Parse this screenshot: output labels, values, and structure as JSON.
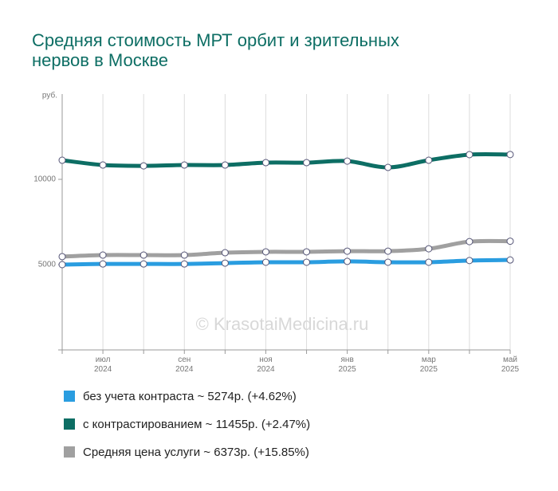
{
  "chart_data": {
    "type": "line",
    "title": [
      "Средняя стоимость МРТ орбит и зрительных",
      "нервов в Москве"
    ],
    "y_label": "руб.",
    "watermark": "© KrasotaiMedicina.ru",
    "categories": [
      null,
      "июл 2024",
      null,
      "сен 2024",
      null,
      "ноя 2024",
      null,
      "янв 2025",
      null,
      "мар 2025",
      null,
      "май 2025"
    ],
    "ylim": [
      0,
      15000
    ],
    "yticks": [
      0,
      5000,
      10000
    ],
    "series": [
      {
        "name": "без учета контраста ~ 5274р. (+4.62%)",
        "color": "#2a9de0",
        "values": [
          5000,
          5040,
          5040,
          5040,
          5090,
          5140,
          5140,
          5190,
          5140,
          5140,
          5240,
          5274
        ]
      },
      {
        "name": "с контрастированием ~ 11455р. (+2.47%)",
        "color": "#0d6e64",
        "values": [
          11120,
          10840,
          10790,
          10840,
          10840,
          10980,
          10980,
          11070,
          10700,
          11120,
          11450,
          11455
        ]
      },
      {
        "name": "Средняя цена услуги ~ 6373р. (+15.85%)",
        "color": "#a0a0a0",
        "values": [
          5470,
          5560,
          5560,
          5560,
          5700,
          5750,
          5750,
          5790,
          5790,
          5930,
          6350,
          6373
        ]
      }
    ]
  }
}
